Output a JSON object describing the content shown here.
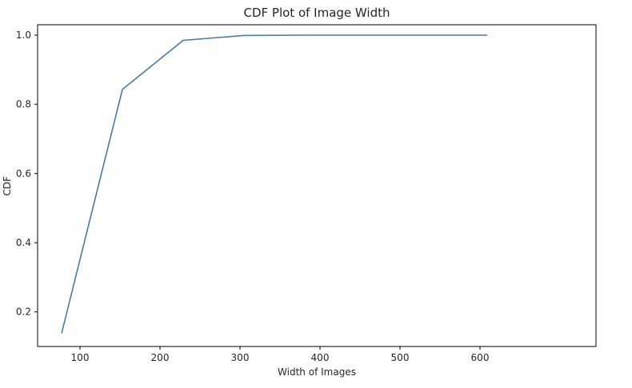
{
  "chart_data": {
    "type": "line",
    "title": "CDF Plot of Image Width",
    "xlabel": "Width of Images",
    "ylabel": "CDF",
    "xlim": [
      47,
      745
    ],
    "ylim": [
      0.1,
      1.03
    ],
    "xticks": [
      100,
      200,
      300,
      400,
      500,
      600
    ],
    "yticks": [
      0.2,
      0.4,
      0.6,
      0.8,
      1.0
    ],
    "ytick_labels": [
      "0.2",
      "0.4",
      "0.6",
      "0.8",
      "1.0"
    ],
    "grid": false,
    "series": [
      {
        "name": "CDF",
        "color": "#4c7aa6",
        "x": [
          77,
          153,
          229,
          305,
          381,
          457,
          533,
          609
        ],
        "y": [
          0.138,
          0.843,
          0.985,
          0.999,
          1.0,
          1.0,
          1.0,
          1.0
        ]
      }
    ]
  }
}
